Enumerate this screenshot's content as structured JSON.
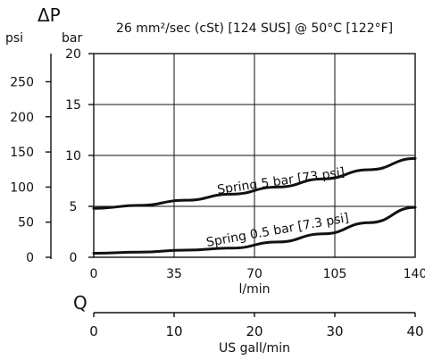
{
  "chart_data": {
    "type": "line",
    "title": "26 mm²/sec (cSt) [124 SUS] @ 50°C [122°F]",
    "delta_p_symbol": "ΔP",
    "q_symbol": "Q",
    "ylabel_bar": "bar",
    "ylabel_psi": "psi",
    "xlabel_lmin": "l/min",
    "xlabel_gpm": "US gall/min",
    "xlim": [
      0,
      140
    ],
    "ylim": [
      0,
      20
    ],
    "x_ticks": [
      "0",
      "35",
      "70",
      "105",
      "140"
    ],
    "y_ticks_bar": [
      "0",
      "5",
      "10",
      "15",
      "20"
    ],
    "y_ticks_psi": [
      "0",
      "50",
      "100",
      "150",
      "200",
      "250"
    ],
    "gpm_ticks": [
      "0",
      "10",
      "20",
      "30",
      "40"
    ],
    "grid": true,
    "series": [
      {
        "name": "Spring 5 bar [73 psi]",
        "x": [
          0,
          20,
          40,
          60,
          80,
          100,
          120,
          140
        ],
        "y": [
          4.8,
          5.1,
          5.6,
          6.2,
          6.9,
          7.7,
          8.6,
          9.7
        ]
      },
      {
        "name": "Spring 0.5 bar [7.3 psi]",
        "x": [
          0,
          20,
          40,
          60,
          80,
          100,
          120,
          140
        ],
        "y": [
          0.4,
          0.5,
          0.7,
          0.9,
          1.5,
          2.3,
          3.4,
          4.9
        ]
      }
    ]
  }
}
